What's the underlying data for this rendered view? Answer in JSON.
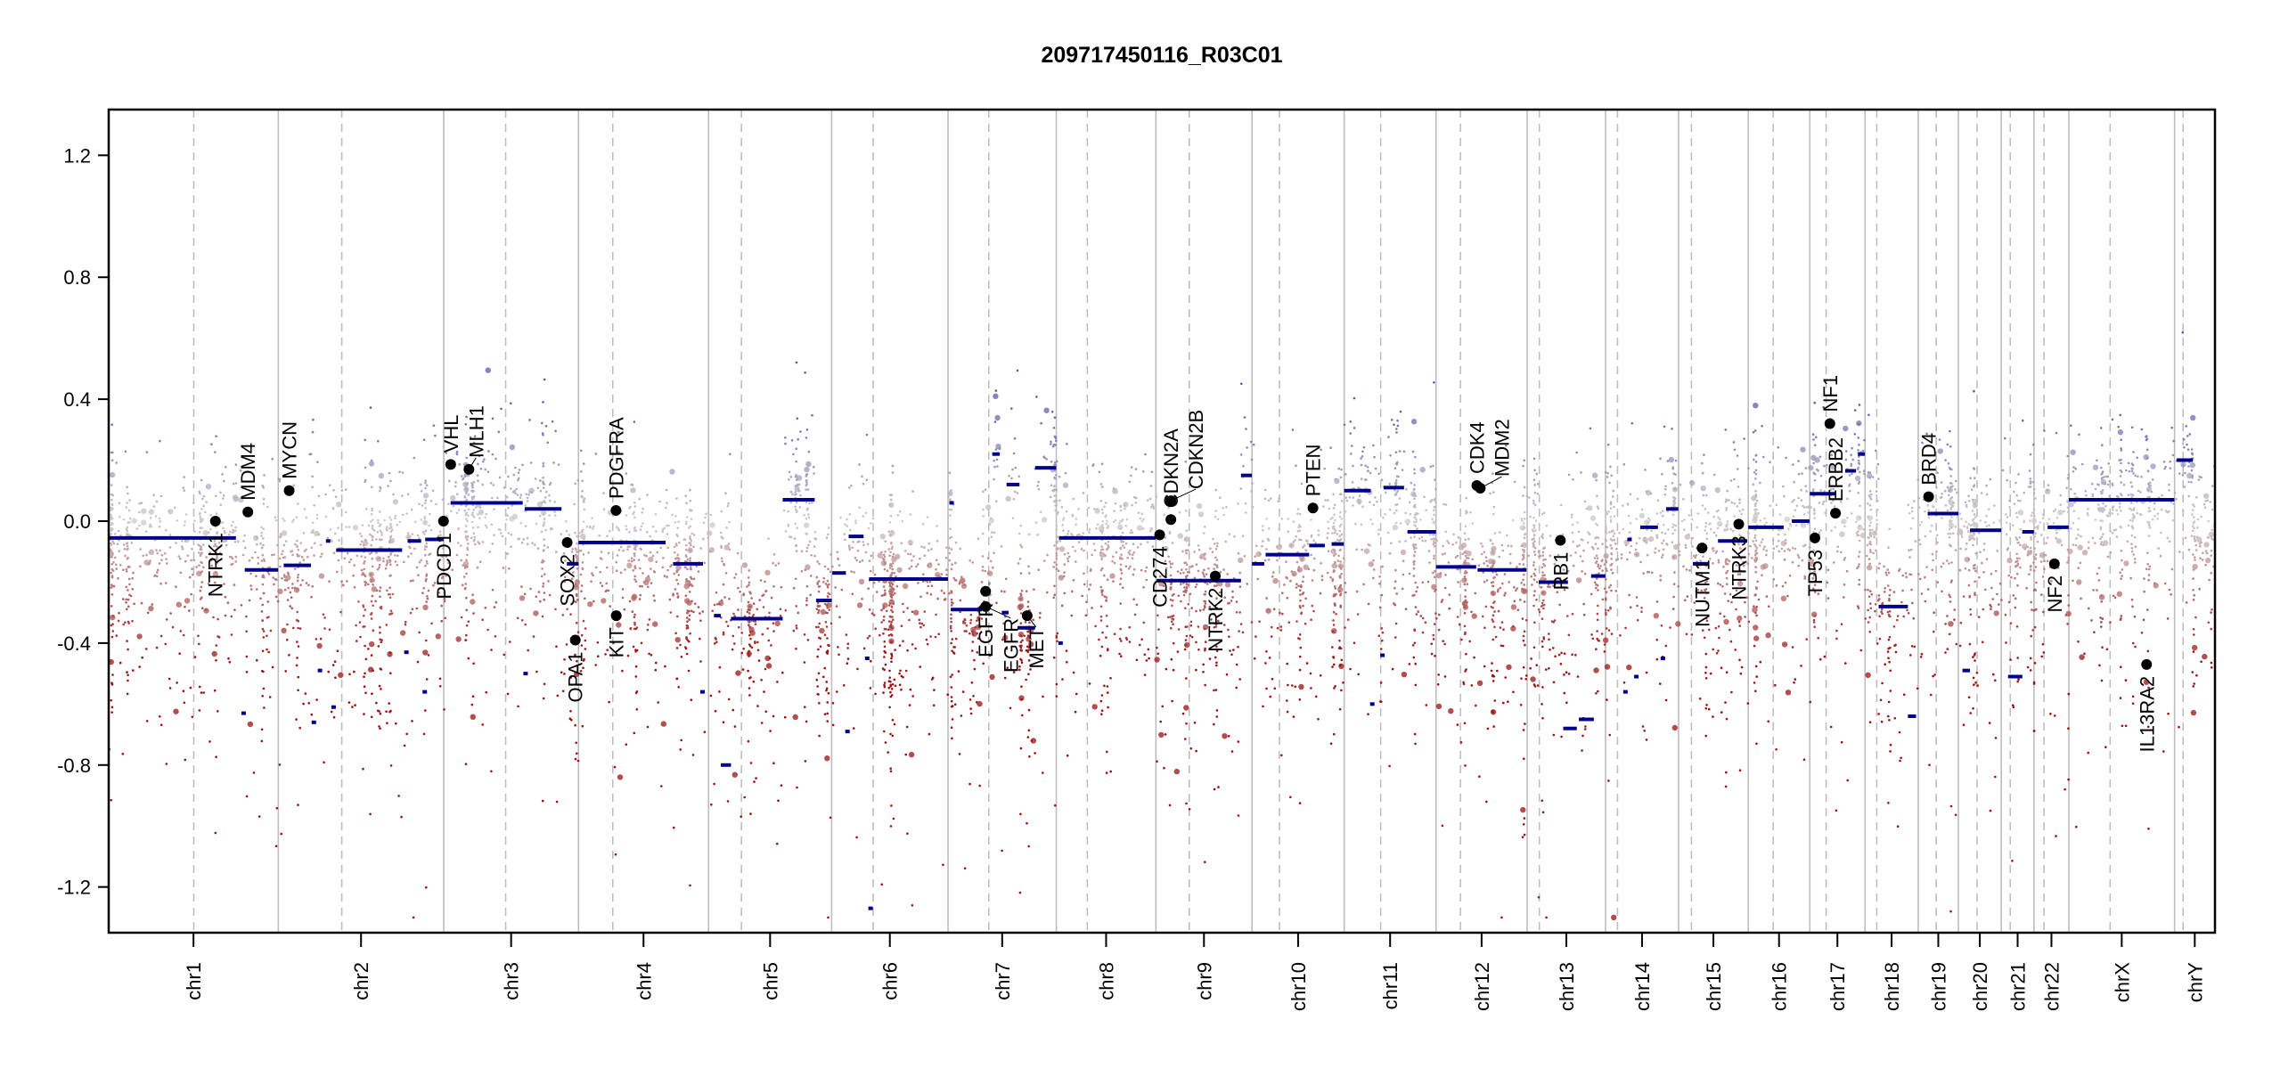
{
  "chart_data": {
    "type": "scatter",
    "title": "209717450116_R03C01",
    "xlabel": "",
    "ylabel": "",
    "ylim": [
      -1.35,
      1.35
    ],
    "yticks": [
      1.2,
      0.8,
      0.4,
      0.0,
      -0.4,
      -0.8,
      -1.2
    ],
    "ytick_labels": [
      "1.2",
      "0.8",
      "0.4",
      "0.0",
      "-0.4",
      "-0.8",
      "-1.2"
    ],
    "grid": false,
    "colors": {
      "segment": "#00008b",
      "gain": "#5a5aa8",
      "neutral": "#cfcbcb",
      "loss": "#9b1010",
      "gene_point": "#000000",
      "chrom_line": "#bebebe"
    },
    "chromosomes": [
      {
        "name": "chr1",
        "length_mb": 249.25,
        "centromere_mb": 125.0
      },
      {
        "name": "chr2",
        "length_mb": 243.2,
        "centromere_mb": 93.3
      },
      {
        "name": "chr3",
        "length_mb": 198.0,
        "centromere_mb": 91.0
      },
      {
        "name": "chr4",
        "length_mb": 191.15,
        "centromere_mb": 50.4
      },
      {
        "name": "chr5",
        "length_mb": 180.9,
        "centromere_mb": 48.4
      },
      {
        "name": "chr6",
        "length_mb": 171.1,
        "centromere_mb": 61.0
      },
      {
        "name": "chr7",
        "length_mb": 159.1,
        "centromere_mb": 59.9
      },
      {
        "name": "chr8",
        "length_mb": 146.4,
        "centromere_mb": 45.6
      },
      {
        "name": "chr9",
        "length_mb": 141.2,
        "centromere_mb": 49.0
      },
      {
        "name": "chr10",
        "length_mb": 135.5,
        "centromere_mb": 40.2
      },
      {
        "name": "chr11",
        "length_mb": 135.0,
        "centromere_mb": 53.7
      },
      {
        "name": "chr12",
        "length_mb": 133.9,
        "centromere_mb": 35.8
      },
      {
        "name": "chr13",
        "length_mb": 115.2,
        "centromere_mb": 17.9
      },
      {
        "name": "chr14",
        "length_mb": 107.3,
        "centromere_mb": 17.6
      },
      {
        "name": "chr15",
        "length_mb": 102.5,
        "centromere_mb": 19.0
      },
      {
        "name": "chr16",
        "length_mb": 90.4,
        "centromere_mb": 36.6
      },
      {
        "name": "chr17",
        "length_mb": 81.2,
        "centromere_mb": 24.0
      },
      {
        "name": "chr18",
        "length_mb": 78.1,
        "centromere_mb": 17.2
      },
      {
        "name": "chr19",
        "length_mb": 59.1,
        "centromere_mb": 26.5
      },
      {
        "name": "chr20",
        "length_mb": 63.0,
        "centromere_mb": 27.5
      },
      {
        "name": "chr21",
        "length_mb": 48.1,
        "centromere_mb": 13.2
      },
      {
        "name": "chr22",
        "length_mb": 51.3,
        "centromere_mb": 14.7
      },
      {
        "name": "chrX",
        "length_mb": 155.3,
        "centromere_mb": 60.6
      },
      {
        "name": "chrY",
        "length_mb": 59.4,
        "centromere_mb": 12.5
      }
    ],
    "segments": [
      [
        "chr1",
        0,
        187,
        -0.055
      ],
      [
        "chr1",
        200,
        249,
        -0.16
      ],
      [
        "chr1",
        195,
        198,
        -0.63
      ],
      [
        "chr2",
        8,
        48,
        -0.145
      ],
      [
        "chr2",
        70,
        72,
        -0.065
      ],
      [
        "chr2",
        85,
        182,
        -0.095
      ],
      [
        "chr2",
        190,
        210,
        -0.065
      ],
      [
        "chr2",
        216,
        243,
        -0.06
      ],
      [
        "chr2",
        49,
        51,
        -0.66
      ],
      [
        "chr2",
        78,
        80,
        -0.61
      ],
      [
        "chr2",
        185,
        187,
        -0.43
      ],
      [
        "chr2",
        212,
        214,
        -0.56
      ],
      [
        "chr2",
        58,
        60,
        -0.49
      ],
      [
        "chr3",
        10,
        116,
        0.06
      ],
      [
        "chr3",
        119,
        173,
        0.04
      ],
      [
        "chr3",
        181,
        198,
        -0.14
      ],
      [
        "chr3",
        117,
        119,
        -0.5
      ],
      [
        "chr4",
        0,
        128,
        -0.07
      ],
      [
        "chr4",
        139,
        183,
        -0.14
      ],
      [
        "chr4",
        179,
        182,
        -0.56
      ],
      [
        "chr5",
        8,
        18,
        -0.31
      ],
      [
        "chr5",
        18,
        33,
        -0.8
      ],
      [
        "chr5",
        33,
        109,
        -0.32
      ],
      [
        "chr5",
        109,
        156,
        0.07
      ],
      [
        "chr5",
        158,
        181,
        -0.26
      ],
      [
        "chr6",
        1,
        21,
        -0.17
      ],
      [
        "chr6",
        25,
        47,
        -0.05
      ],
      [
        "chr6",
        55,
        171,
        -0.19
      ],
      [
        "chr6",
        20,
        22,
        -0.69
      ],
      [
        "chr6",
        49,
        51,
        -0.45
      ],
      [
        "chr6",
        54,
        56,
        -1.27
      ],
      [
        "chr7",
        4,
        50,
        -0.29
      ],
      [
        "chr7",
        65,
        76,
        0.22
      ],
      [
        "chr7",
        79,
        89,
        -0.3
      ],
      [
        "chr7",
        86,
        105,
        0.12
      ],
      [
        "chr7",
        102,
        128,
        -0.35
      ],
      [
        "chr7",
        128,
        159,
        0.175
      ],
      [
        "chr7",
        2,
        5,
        0.06
      ],
      [
        "chr8",
        4,
        146,
        -0.055
      ],
      [
        "chr8",
        3,
        5,
        -0.4
      ],
      [
        "chr9",
        1,
        125,
        -0.195
      ],
      [
        "chr9",
        125,
        141,
        0.15
      ],
      [
        "chr10",
        0,
        18,
        -0.14
      ],
      [
        "chr10",
        20,
        84,
        -0.11
      ],
      [
        "chr10",
        84,
        107,
        -0.08
      ],
      [
        "chr10",
        117,
        135,
        -0.075
      ],
      [
        "chr11",
        0,
        39,
        0.1
      ],
      [
        "chr11",
        58,
        88,
        0.11
      ],
      [
        "chr11",
        93,
        135,
        -0.035
      ],
      [
        "chr11",
        53,
        55,
        -0.44
      ],
      [
        "chr11",
        38,
        40,
        -0.6
      ],
      [
        "chr12",
        0,
        59,
        -0.15
      ],
      [
        "chr12",
        61,
        133,
        -0.16
      ],
      [
        "chr13",
        17,
        60,
        -0.2
      ],
      [
        "chr13",
        94,
        115,
        -0.18
      ],
      [
        "chr13",
        53,
        73,
        -0.68
      ],
      [
        "chr13",
        76,
        98,
        -0.65
      ],
      [
        "chr14",
        51,
        77,
        -0.02
      ],
      [
        "chr14",
        89,
        107,
        0.04
      ],
      [
        "chr14",
        32,
        34,
        -0.06
      ],
      [
        "chr14",
        42,
        44,
        -0.51
      ],
      [
        "chr14",
        81,
        83,
        -0.45
      ],
      [
        "chr14",
        26,
        28,
        -0.56
      ],
      [
        "chr15",
        21,
        45,
        -0.14
      ],
      [
        "chr15",
        58,
        101,
        -0.065
      ],
      [
        "chr16",
        0,
        52,
        -0.02
      ],
      [
        "chr16",
        64,
        90,
        0.0
      ],
      [
        "chr17",
        0,
        37,
        0.09
      ],
      [
        "chr17",
        52,
        68,
        0.165
      ],
      [
        "chr17",
        71,
        81,
        0.22
      ],
      [
        "chr18",
        20,
        63,
        -0.28
      ],
      [
        "chr18",
        63,
        75,
        -0.64
      ],
      [
        "chr19",
        14,
        59,
        0.025
      ],
      [
        "chr20",
        17,
        63,
        -0.03
      ],
      [
        "chr20",
        6,
        17,
        -0.49
      ],
      [
        "chr21",
        31,
        48,
        -0.035
      ],
      [
        "chr21",
        10,
        31,
        -0.51
      ],
      [
        "chr22",
        20,
        51,
        -0.02
      ],
      [
        "chrX",
        0,
        155,
        0.07
      ],
      [
        "chrY",
        3,
        27,
        0.2
      ]
    ],
    "genes": [
      {
        "name": "NTRK1",
        "chr": "chr1",
        "pos_mb": 156.8,
        "value": 0.0,
        "label": "below"
      },
      {
        "name": "MDM4",
        "chr": "chr1",
        "pos_mb": 204.5,
        "value": 0.03,
        "label": "above"
      },
      {
        "name": "MYCN",
        "chr": "chr2",
        "pos_mb": 16.0,
        "value": 0.1,
        "label": "above"
      },
      {
        "name": "PDCD1",
        "chr": "chr2",
        "pos_mb": 242.8,
        "value": 0.0,
        "label": "below"
      },
      {
        "name": "VHL",
        "chr": "chr3",
        "pos_mb": 10.2,
        "value": 0.186,
        "label": "above"
      },
      {
        "name": "MLH1",
        "chr": "chr3",
        "pos_mb": 37.0,
        "value": 0.17,
        "label": "above"
      },
      {
        "name": "SOX2",
        "chr": "chr3",
        "pos_mb": 181.4,
        "value": -0.07,
        "label": "below"
      },
      {
        "name": "OPA1",
        "chr": "chr3",
        "pos_mb": 193.3,
        "value": -0.39,
        "label": "below"
      },
      {
        "name": "PDGFRA",
        "chr": "chr4",
        "pos_mb": 55.1,
        "value": 0.035,
        "label": "above"
      },
      {
        "name": "KIT",
        "chr": "chr4",
        "pos_mb": 55.5,
        "value": -0.31,
        "label": "below"
      },
      {
        "name": "EGFR",
        "chr": "chr7",
        "pos_mb": 55.2,
        "value": -0.23,
        "label": "below"
      },
      {
        "name": "EGFR",
        "chr": "chr7",
        "pos_mb": 55.3,
        "value": -0.28,
        "label": "below"
      },
      {
        "name": "MET",
        "chr": "chr7",
        "pos_mb": 116.3,
        "value": -0.31,
        "label": "below"
      },
      {
        "name": "CD274",
        "chr": "chr9",
        "pos_mb": 5.5,
        "value": -0.045,
        "label": "below"
      },
      {
        "name": "CDKN2A",
        "chr": "chr9",
        "pos_mb": 21.97,
        "value": 0.005,
        "label": "above"
      },
      {
        "name": "CDKN2B",
        "chr": "chr9",
        "pos_mb": 22.0,
        "value": 0.067,
        "label": "above"
      },
      {
        "name": "NTRK2",
        "chr": "chr9",
        "pos_mb": 87.3,
        "value": -0.18,
        "label": "below"
      },
      {
        "name": "PTEN",
        "chr": "chr10",
        "pos_mb": 89.6,
        "value": 0.043,
        "label": "above"
      },
      {
        "name": "CDK4",
        "chr": "chr12",
        "pos_mb": 60.0,
        "value": 0.117,
        "label": "above"
      },
      {
        "name": "MDM2",
        "chr": "chr12",
        "pos_mb": 65.0,
        "value": 0.108,
        "label": "above"
      },
      {
        "name": "RB1",
        "chr": "chr13",
        "pos_mb": 48.9,
        "value": -0.063,
        "label": "below"
      },
      {
        "name": "NUTM1",
        "chr": "chr15",
        "pos_mb": 34.6,
        "value": -0.088,
        "label": "below"
      },
      {
        "name": "NTRK3",
        "chr": "chr15",
        "pos_mb": 88.5,
        "value": -0.01,
        "label": "below"
      },
      {
        "name": "TP53",
        "chr": "chr17",
        "pos_mb": 7.5,
        "value": -0.055,
        "label": "below"
      },
      {
        "name": "NF1",
        "chr": "chr17",
        "pos_mb": 29.5,
        "value": 0.32,
        "label": "above"
      },
      {
        "name": "ERBB2",
        "chr": "chr17",
        "pos_mb": 37.8,
        "value": 0.026,
        "label": "above"
      },
      {
        "name": "BRD4",
        "chr": "chr19",
        "pos_mb": 15.3,
        "value": 0.08,
        "label": "above"
      },
      {
        "name": "NF2",
        "chr": "chr22",
        "pos_mb": 30.0,
        "value": -0.14,
        "label": "below"
      },
      {
        "name": "IL13RA2",
        "chr": "chrX",
        "pos_mb": 114.2,
        "value": -0.47,
        "label": "below"
      }
    ]
  }
}
